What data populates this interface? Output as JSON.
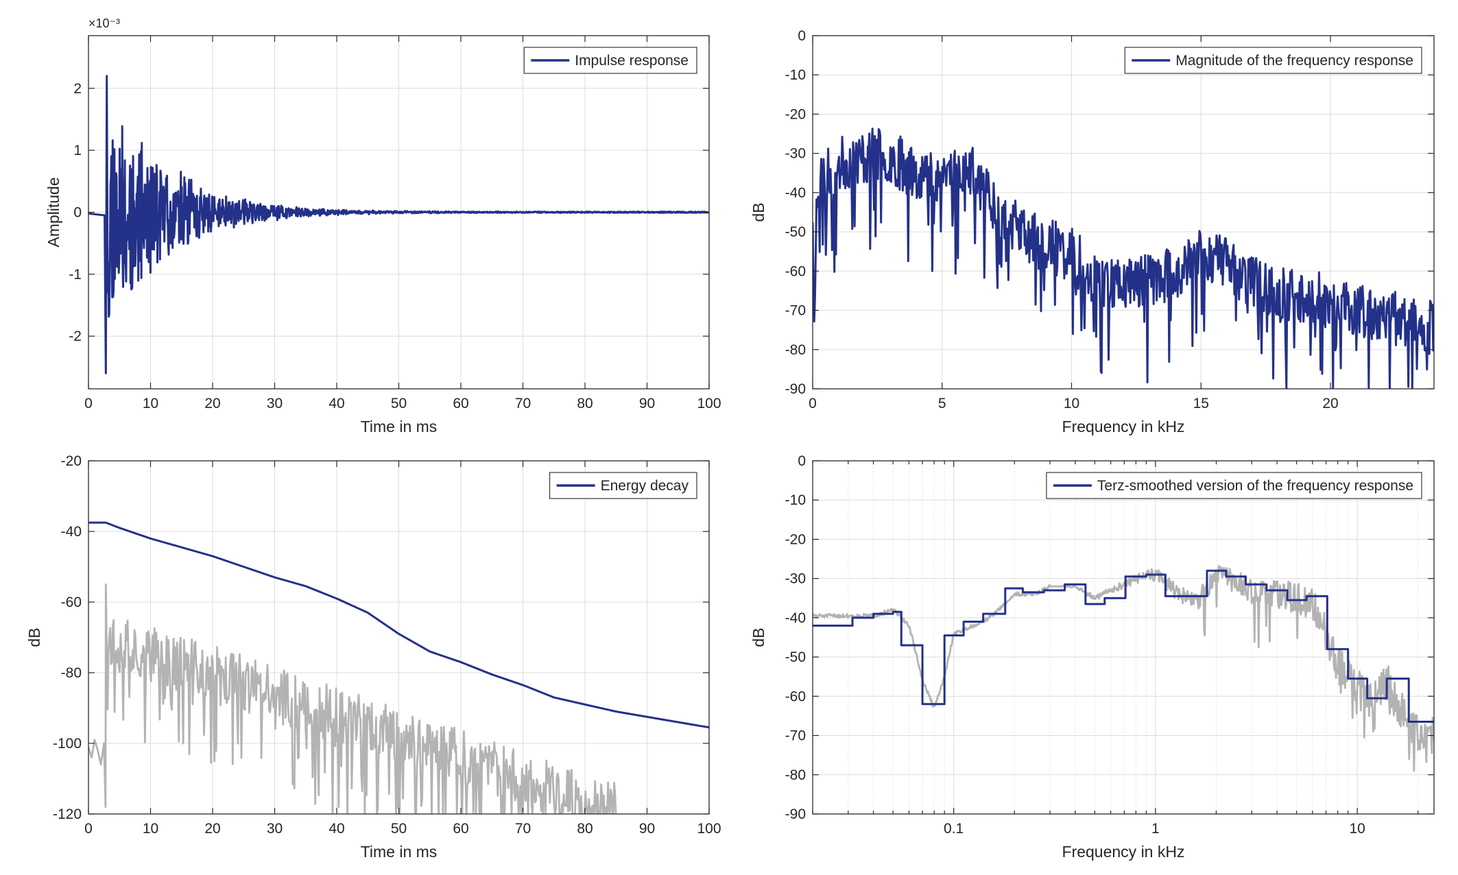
{
  "colors": {
    "series": "#243189",
    "reference": "#b3b3b3",
    "axes": "#262626",
    "grid": "#dcdcdc",
    "background": "#ffffff"
  },
  "chart_data": [
    {
      "id": "impulse",
      "type": "line",
      "xlabel": "Time in ms",
      "ylabel": "Amplitude",
      "xlim": [
        0,
        100
      ],
      "ylim": [
        -2.85,
        2.85
      ],
      "y_exponent_label": "×10⁻³",
      "xticks": [
        0,
        10,
        20,
        30,
        40,
        50,
        60,
        70,
        80,
        90,
        100
      ],
      "yticks": [
        -2,
        -1,
        0,
        1,
        2
      ],
      "grid": true,
      "legend_position": "top-right",
      "series": [
        {
          "name": "Impulse response",
          "style": "noise-burst",
          "params": {
            "t0": 2.8,
            "t_end": 100,
            "dt": 0.07,
            "peak": 2.4,
            "tau": 9.5,
            "start_level": -0.2,
            "seed": 11
          },
          "points": [
            [
              0,
              -0.02
            ],
            [
              2.6,
              -0.05
            ],
            [
              2.9,
              -2.6
            ],
            [
              3.1,
              2.2
            ],
            [
              3.4,
              -1.3
            ],
            [
              4.0,
              1.9
            ],
            [
              5.0,
              -1.2
            ],
            [
              10.0,
              1.1
            ],
            [
              20.0,
              0.55
            ],
            [
              30.0,
              0.2
            ],
            [
              40.0,
              0.07
            ],
            [
              50.0,
              0.02
            ],
            [
              100.0,
              0.0
            ]
          ]
        }
      ]
    },
    {
      "id": "magnitude",
      "type": "line",
      "xlabel": "Frequency in kHz",
      "ylabel": "dB",
      "xlim": [
        0,
        24
      ],
      "ylim": [
        -90,
        0
      ],
      "xticks": [
        0,
        5,
        10,
        15,
        20
      ],
      "yticks": [
        -90,
        -80,
        -70,
        -60,
        -50,
        -40,
        -30,
        -20,
        -10,
        0
      ],
      "grid": true,
      "legend_position": "top-right",
      "series": [
        {
          "name": "Magnitude of the frequency response",
          "style": "noisy",
          "params": {
            "dx": 0.03,
            "noise": 7,
            "dip_prob": 0.09,
            "dip_depth": 22,
            "seed": 23
          },
          "envelope": [
            [
              0,
              -44
            ],
            [
              0.05,
              -80
            ],
            [
              0.15,
              -38
            ],
            [
              0.5,
              -36
            ],
            [
              1.0,
              -33
            ],
            [
              2.0,
              -31
            ],
            [
              2.8,
              -30
            ],
            [
              3.5,
              -33
            ],
            [
              4.5,
              -36
            ],
            [
              5.5,
              -34
            ],
            [
              6.0,
              -34
            ],
            [
              6.5,
              -38
            ],
            [
              7.5,
              -47
            ],
            [
              8.5,
              -52
            ],
            [
              10.0,
              -56
            ],
            [
              11.0,
              -62
            ],
            [
              12.0,
              -63
            ],
            [
              13.0,
              -62
            ],
            [
              14.0,
              -61
            ],
            [
              15.0,
              -56
            ],
            [
              15.8,
              -57
            ],
            [
              17.0,
              -63
            ],
            [
              18.0,
              -66
            ],
            [
              19.0,
              -66
            ],
            [
              20.0,
              -68
            ],
            [
              21.0,
              -70
            ],
            [
              22.0,
              -72
            ],
            [
              23.0,
              -72
            ],
            [
              24.0,
              -75
            ]
          ]
        }
      ]
    },
    {
      "id": "energy",
      "type": "line",
      "xlabel": "Time in ms",
      "ylabel": "dB",
      "xlim": [
        0,
        100
      ],
      "ylim": [
        -120,
        -20
      ],
      "xticks": [
        0,
        10,
        20,
        30,
        40,
        50,
        60,
        70,
        80,
        90,
        100
      ],
      "yticks": [
        -120,
        -100,
        -80,
        -60,
        -40,
        -20
      ],
      "grid": true,
      "legend_position": "top-right",
      "series": [
        {
          "name": "Energy decay",
          "points": [
            [
              0,
              -37.5
            ],
            [
              2.8,
              -37.5
            ],
            [
              5,
              -39
            ],
            [
              10,
              -42
            ],
            [
              15,
              -44.5
            ],
            [
              20,
              -47
            ],
            [
              25,
              -50
            ],
            [
              30,
              -53
            ],
            [
              35,
              -55.5
            ],
            [
              40,
              -59
            ],
            [
              45,
              -63
            ],
            [
              50,
              -69
            ],
            [
              55,
              -74
            ],
            [
              60,
              -77
            ],
            [
              65,
              -80.5
            ],
            [
              70,
              -83.5
            ],
            [
              75,
              -87
            ],
            [
              80,
              -89
            ],
            [
              85,
              -91
            ],
            [
              90,
              -92.5
            ],
            [
              95,
              -94
            ],
            [
              100,
              -95.5
            ]
          ]
        },
        {
          "name": "",
          "style": "noisy-reference",
          "params": {
            "t0": 2.8,
            "t_end": 85,
            "dt": 0.14,
            "noise": 8,
            "dip_prob": 0.15,
            "dip_depth": 28,
            "seed": 37
          },
          "pre_points": [
            [
              0,
              -101
            ],
            [
              0.5,
              -104
            ],
            [
              1.0,
              -99
            ],
            [
              1.5,
              -102
            ],
            [
              2.0,
              -106
            ],
            [
              2.5,
              -100
            ]
          ],
          "envelope": [
            [
              2.8,
              -70
            ],
            [
              5,
              -72
            ],
            [
              10,
              -75
            ],
            [
              20,
              -80
            ],
            [
              30,
              -86
            ],
            [
              40,
              -92
            ],
            [
              50,
              -98
            ],
            [
              60,
              -104
            ],
            [
              70,
              -110
            ],
            [
              80,
              -117
            ],
            [
              85,
              -119
            ]
          ]
        }
      ]
    },
    {
      "id": "terz",
      "type": "line",
      "xlabel": "Frequency in kHz",
      "ylabel": "dB",
      "xscale": "log",
      "xlim": [
        0.02,
        24
      ],
      "ylim": [
        -90,
        0
      ],
      "xticks": [
        0.1,
        1,
        10
      ],
      "xticklabels": [
        "0.1",
        "1",
        "10"
      ],
      "yticks": [
        -90,
        -80,
        -70,
        -60,
        -50,
        -40,
        -30,
        -20,
        -10,
        0
      ],
      "grid": true,
      "legend_position": "top-right",
      "series": [
        {
          "name": "Terz-smoothed version of the frequency response",
          "style": "step",
          "points": [
            [
              0.02,
              -42
            ],
            [
              0.0315,
              -40
            ],
            [
              0.04,
              -39
            ],
            [
              0.05,
              -38.5
            ],
            [
              0.055,
              -47
            ],
            [
              0.07,
              -62
            ],
            [
              0.09,
              -44.5
            ],
            [
              0.112,
              -41
            ],
            [
              0.14,
              -39
            ],
            [
              0.18,
              -32.5
            ],
            [
              0.22,
              -33.5
            ],
            [
              0.28,
              -33
            ],
            [
              0.355,
              -31.5
            ],
            [
              0.45,
              -36.5
            ],
            [
              0.56,
              -35
            ],
            [
              0.71,
              -29.5
            ],
            [
              0.9,
              -29
            ],
            [
              1.12,
              -34.5
            ],
            [
              1.4,
              -34.5
            ],
            [
              1.8,
              -28
            ],
            [
              2.24,
              -29.5
            ],
            [
              2.8,
              -31.5
            ],
            [
              3.55,
              -33
            ],
            [
              4.5,
              -35.5
            ],
            [
              5.6,
              -34.5
            ],
            [
              7.1,
              -48
            ],
            [
              9.0,
              -55.5
            ],
            [
              11.2,
              -60.5
            ],
            [
              14.0,
              -55.5
            ],
            [
              18.0,
              -66.5
            ],
            [
              24.0,
              -66.5
            ]
          ]
        },
        {
          "name": "",
          "style": "noisy-log-reference",
          "params": {
            "noise": 5,
            "dip_prob": 0.1,
            "dip_depth": 14,
            "seed": 51
          },
          "envelope": [
            [
              0.02,
              -39.5
            ],
            [
              0.03,
              -39.5
            ],
            [
              0.04,
              -39.5
            ],
            [
              0.05,
              -38
            ],
            [
              0.06,
              -42
            ],
            [
              0.07,
              -56
            ],
            [
              0.08,
              -63
            ],
            [
              0.09,
              -55
            ],
            [
              0.1,
              -44
            ],
            [
              0.15,
              -40
            ],
            [
              0.2,
              -34
            ],
            [
              0.25,
              -34
            ],
            [
              0.3,
              -32
            ],
            [
              0.4,
              -32
            ],
            [
              0.5,
              -35
            ],
            [
              0.6,
              -33
            ],
            [
              0.8,
              -30
            ],
            [
              1.0,
              -29
            ],
            [
              1.3,
              -34
            ],
            [
              1.6,
              -36
            ],
            [
              2.0,
              -29
            ],
            [
              2.5,
              -31
            ],
            [
              3.0,
              -33
            ],
            [
              4.0,
              -34
            ],
            [
              5.0,
              -35
            ],
            [
              6.0,
              -36
            ],
            [
              7.0,
              -44
            ],
            [
              8.0,
              -52
            ],
            [
              10.0,
              -58
            ],
            [
              12.0,
              -61
            ],
            [
              14.0,
              -56
            ],
            [
              16.0,
              -63
            ],
            [
              20.0,
              -70
            ],
            [
              24.0,
              -70
            ]
          ]
        }
      ]
    }
  ]
}
